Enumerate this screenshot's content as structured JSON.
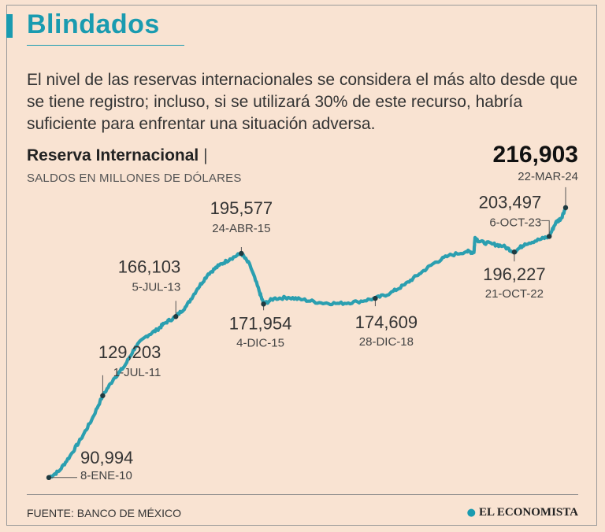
{
  "header": {
    "title": "Blindados",
    "dek": "El nivel de las reservas internacionales se considera el más alto desde que se tiene registro; incluso, si se utilizará 30% de este recurso, habría suficiente para enfrentar una situación adversa."
  },
  "footer": {
    "source": "FUENTE: BANCO DE MÉXICO",
    "brand": "EL ECONOMISTA",
    "brand_icon": "globe-icon"
  },
  "colors": {
    "accent": "#1a9bb0",
    "line": "#2b9fb0",
    "background": "#f9e3d2"
  },
  "chart_data": {
    "type": "line",
    "title": "Reserva Internacional",
    "title_separator": "|",
    "subtitle": "SALDOS EN MILLONES DE DÓLARES",
    "x_range": [
      2010.02,
      2024.22
    ],
    "ylim": [
      88000,
      222000
    ],
    "series": [
      {
        "name": "Reserva Internacional",
        "points": [
          [
            2010.02,
            90994
          ],
          [
            2010.3,
            94000
          ],
          [
            2010.6,
            101000
          ],
          [
            2010.9,
            109000
          ],
          [
            2011.2,
            118000
          ],
          [
            2011.5,
            129203
          ],
          [
            2011.8,
            137000
          ],
          [
            2012.1,
            143000
          ],
          [
            2012.4,
            152000
          ],
          [
            2012.7,
            157000
          ],
          [
            2013.0,
            160000
          ],
          [
            2013.2,
            163000
          ],
          [
            2013.51,
            166103
          ],
          [
            2013.8,
            171000
          ],
          [
            2014.1,
            179000
          ],
          [
            2014.4,
            186000
          ],
          [
            2014.7,
            190000
          ],
          [
            2015.0,
            193000
          ],
          [
            2015.31,
            195577
          ],
          [
            2015.55,
            190000
          ],
          [
            2015.8,
            178000
          ],
          [
            2015.92,
            171954
          ],
          [
            2016.2,
            174500
          ],
          [
            2016.6,
            175000
          ],
          [
            2017.0,
            174000
          ],
          [
            2017.5,
            172500
          ],
          [
            2018.0,
            172200
          ],
          [
            2018.5,
            173000
          ],
          [
            2018.99,
            174609
          ],
          [
            2019.4,
            177000
          ],
          [
            2019.8,
            181000
          ],
          [
            2020.2,
            186000
          ],
          [
            2020.6,
            191000
          ],
          [
            2021.0,
            194500
          ],
          [
            2021.5,
            196500
          ],
          [
            2021.7,
            196000
          ],
          [
            2021.73,
            203000
          ],
          [
            2021.85,
            201000
          ],
          [
            2022.2,
            200000
          ],
          [
            2022.5,
            199000
          ],
          [
            2022.81,
            196227
          ],
          [
            2023.1,
            200000
          ],
          [
            2023.5,
            202000
          ],
          [
            2023.77,
            203497
          ],
          [
            2023.95,
            210000
          ],
          [
            2024.1,
            212000
          ],
          [
            2024.22,
            216903
          ]
        ]
      }
    ],
    "annotations": [
      {
        "x": 2010.02,
        "y": 90994,
        "value": "90,994",
        "date": "8-ENE-10"
      },
      {
        "x": 2011.5,
        "y": 129203,
        "value": "129,203",
        "date": "1-JUL-11"
      },
      {
        "x": 2013.51,
        "y": 166103,
        "value": "166,103",
        "date": "5-JUL-13"
      },
      {
        "x": 2015.31,
        "y": 195577,
        "value": "195,577",
        "date": "24-ABR-15"
      },
      {
        "x": 2015.92,
        "y": 171954,
        "value": "171,954",
        "date": "4-DIC-15"
      },
      {
        "x": 2018.99,
        "y": 174609,
        "value": "174,609",
        "date": "28-DIC-18"
      },
      {
        "x": 2022.81,
        "y": 196227,
        "value": "196,227",
        "date": "21-OCT-22"
      },
      {
        "x": 2023.77,
        "y": 203497,
        "value": "203,497",
        "date": "6-OCT-23"
      },
      {
        "x": 2024.22,
        "y": 216903,
        "value": "216,903",
        "date": "22-MAR-24"
      }
    ]
  }
}
